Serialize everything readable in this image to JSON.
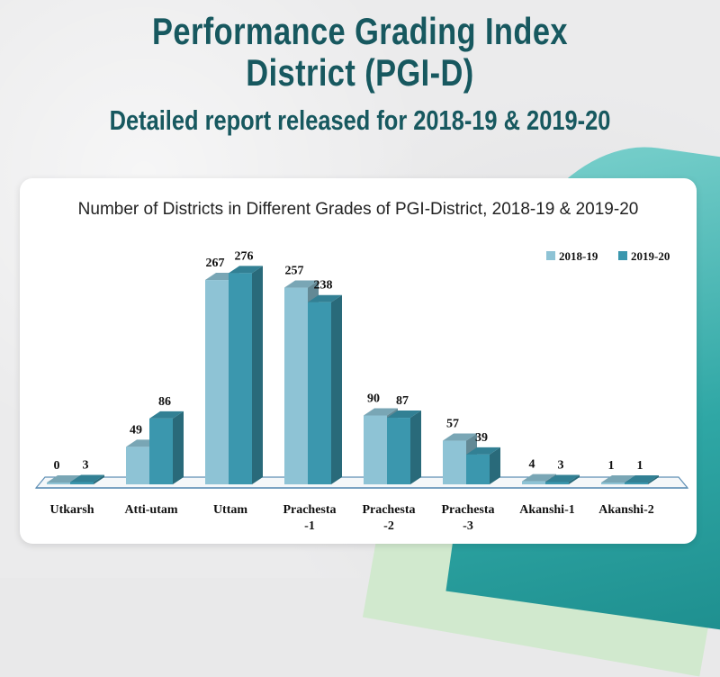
{
  "header": {
    "title_line1": "Performance Grading Index",
    "title_line2": "District (PGI-D)",
    "subtitle": "Detailed report released for 2018-19 & 2019-20"
  },
  "colors": {
    "series_2018": "#8ec3d5",
    "series_2019": "#3b97ae",
    "title_text": "#17585f"
  },
  "chart_data": {
    "type": "bar",
    "title": "Number of Districts in Different Grades of PGI-District, 2018-19 & 2019-20",
    "categories": [
      "Utkarsh",
      "Atti-utam",
      "Uttam",
      "Prachesta -1",
      "Prachesta -2",
      "Prachesta -3",
      "Akanshi-1",
      "Akanshi-2"
    ],
    "category_lines": [
      [
        "Utkarsh"
      ],
      [
        "Atti-utam"
      ],
      [
        "Uttam"
      ],
      [
        "Prachesta",
        "-1"
      ],
      [
        "Prachesta",
        "-2"
      ],
      [
        "Prachesta",
        "-3"
      ],
      [
        "Akanshi-1"
      ],
      [
        "Akanshi-2"
      ]
    ],
    "series": [
      {
        "name": "2018-19",
        "values": [
          0,
          49,
          267,
          257,
          90,
          57,
          4,
          1
        ]
      },
      {
        "name": "2019-20",
        "values": [
          3,
          86,
          276,
          238,
          87,
          39,
          3,
          1
        ]
      }
    ],
    "ylim": [
      0,
      300
    ],
    "legend_position": "top-right",
    "grid": false,
    "xlabel": "",
    "ylabel": ""
  }
}
